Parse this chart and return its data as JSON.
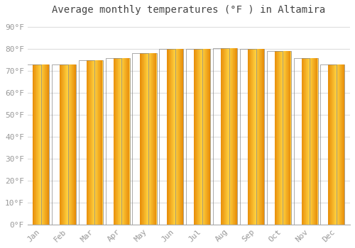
{
  "title": "Average monthly temperatures (°F ) in Altamira",
  "months": [
    "Jan",
    "Feb",
    "Mar",
    "Apr",
    "May",
    "Jun",
    "Jul",
    "Aug",
    "Sep",
    "Oct",
    "Nov",
    "Dec"
  ],
  "values": [
    73,
    73,
    75,
    76,
    78,
    80,
    80,
    80.5,
    80,
    79,
    76,
    73
  ],
  "bar_color_left": "#E8900A",
  "bar_color_center": "#FFD050",
  "bar_color_right": "#E8900A",
  "bar_edge_color": "#888888",
  "background_color": "#FFFFFF",
  "grid_color": "#DDDDDD",
  "yticks": [
    0,
    10,
    20,
    30,
    40,
    50,
    60,
    70,
    80,
    90
  ],
  "ylim": [
    0,
    93
  ],
  "title_fontsize": 10,
  "tick_fontsize": 8,
  "font_family": "monospace",
  "tick_color": "#999999",
  "bar_width": 0.6
}
